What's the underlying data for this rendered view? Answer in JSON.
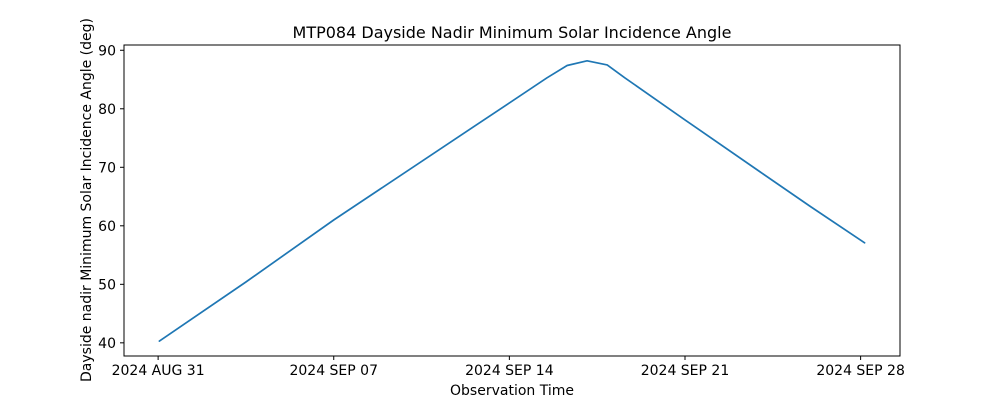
{
  "figure": {
    "background_color": "#ffffff",
    "text_color": "#000000"
  },
  "chart_data": {
    "type": "line",
    "title": "MTP084 Dayside Nadir Minimum Solar Incidence Angle",
    "xlabel": "Observation Time",
    "ylabel": "Dayside nadir Minimum Solar Incidence Angle (deg)",
    "grid": false,
    "legend": null,
    "line_color": "#1f77b4",
    "line_width": 1.7,
    "spine_color": "#000000",
    "x_unit": "days relative to first x tick (2024 AUG 31)",
    "xlim": [
      -1.36,
      29.57
    ],
    "ylim": [
      37.75,
      90.9
    ],
    "x_ticks": [
      {
        "day": 0,
        "label": "2024 AUG 31"
      },
      {
        "day": 7,
        "label": "2024 SEP 07"
      },
      {
        "day": 14,
        "label": "2024 SEP 14"
      },
      {
        "day": 21,
        "label": "2024 SEP 21"
      },
      {
        "day": 28,
        "label": "2024 SEP 28"
      }
    ],
    "y_ticks": [
      40,
      50,
      60,
      70,
      80,
      90
    ],
    "series": [
      {
        "name": "dayside-nadir-min-solar-incidence-angle",
        "points": [
          [
            0.05,
            40.3
          ],
          [
            3.5,
            50.4
          ],
          [
            7.0,
            61.0
          ],
          [
            10.5,
            71.0
          ],
          [
            14.0,
            81.0
          ],
          [
            15.5,
            85.3
          ],
          [
            16.3,
            87.4
          ],
          [
            17.1,
            88.2
          ],
          [
            17.9,
            87.5
          ],
          [
            18.6,
            85.3
          ],
          [
            21.0,
            78.1
          ],
          [
            24.0,
            69.2
          ],
          [
            26.0,
            63.3
          ],
          [
            28.16,
            57.1
          ]
        ]
      }
    ]
  }
}
